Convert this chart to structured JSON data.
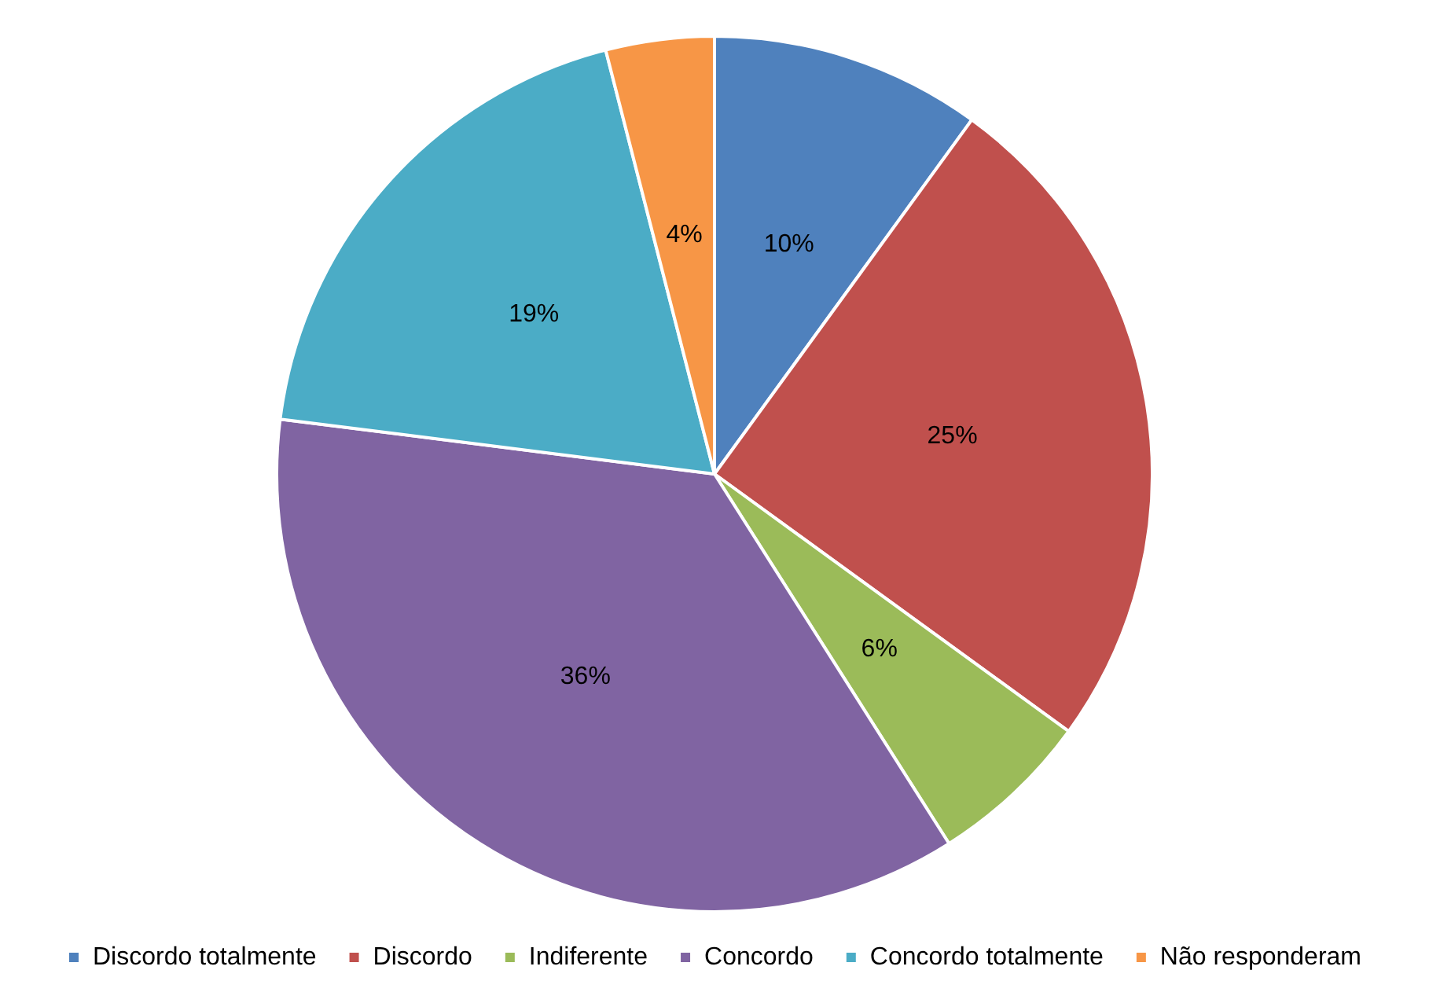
{
  "chart_data": {
    "type": "pie",
    "categories": [
      "Discordo totalmente",
      "Discordo",
      "Indiferente",
      "Concordo",
      "Concordo totalmente",
      "Não responderam"
    ],
    "values": [
      10,
      25,
      6,
      36,
      19,
      4
    ],
    "colors": [
      "#4f81bd",
      "#c0504d",
      "#9bbb59",
      "#8064a2",
      "#4bacc6",
      "#f79646"
    ],
    "value_labels": [
      "10%",
      "25%",
      "6%",
      "36%",
      "19%",
      "4%"
    ],
    "legend": "bottom"
  }
}
